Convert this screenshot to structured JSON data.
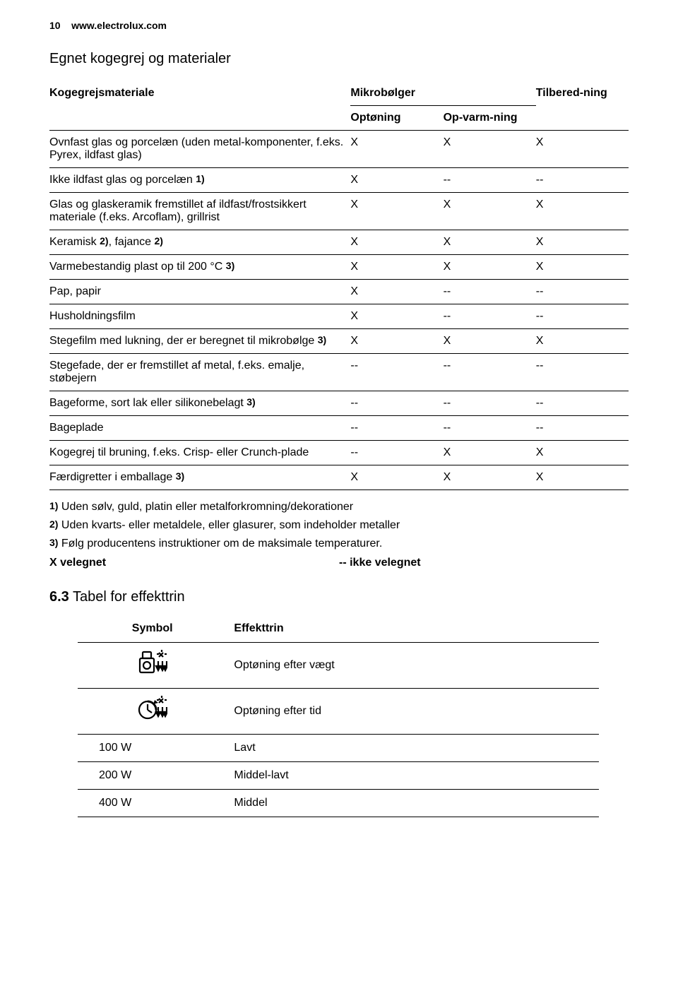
{
  "header": {
    "page_number": "10",
    "site": "www.electrolux.com"
  },
  "section_title": "Egnet kogegrej og materialer",
  "main_table": {
    "columns": {
      "c1": "Kogegrejsmateriale",
      "c2_top": "Mikrobølger",
      "c2a": "Optøning",
      "c2b": "Op-varm-ning",
      "c3": "Tilbered-ning"
    },
    "rows": [
      {
        "label": "Ovnfast glas og porcelæn (uden metal-komponenter, f.eks. Pyrex, ildfast glas)",
        "sup": "",
        "v": [
          "X",
          "X",
          "X"
        ]
      },
      {
        "label": "Ikke ildfast glas og porcelæn ",
        "sup": "1)",
        "v": [
          "X",
          "--",
          "--"
        ]
      },
      {
        "label": "Glas og glaskeramik fremstillet af ildfast/frostsikkert materiale (f.eks. Arcoflam), grillrist",
        "sup": "",
        "v": [
          "X",
          "X",
          "X"
        ]
      },
      {
        "label_pre": "Keramisk ",
        "sup_mid": "2)",
        "label_mid": ", fajance ",
        "sup": "2)",
        "v": [
          "X",
          "X",
          "X"
        ]
      },
      {
        "label": "Varmebestandig plast op til 200 °C ",
        "sup": "3)",
        "v": [
          "X",
          "X",
          "X"
        ]
      },
      {
        "label": "Pap, papir",
        "sup": "",
        "v": [
          "X",
          "--",
          "--"
        ]
      },
      {
        "label": "Husholdningsfilm",
        "sup": "",
        "v": [
          "X",
          "--",
          "--"
        ]
      },
      {
        "label": "Stegefilm med lukning, der er beregnet til mikrobølge ",
        "sup": "3)",
        "v": [
          "X",
          "X",
          "X"
        ]
      },
      {
        "label": "Stegefade, der er fremstillet af metal, f.eks. emalje, støbejern",
        "sup": "",
        "v": [
          "--",
          "--",
          "--"
        ]
      },
      {
        "label": "Bageforme, sort lak eller silikonebelagt ",
        "sup": "3)",
        "v": [
          "--",
          "--",
          "--"
        ]
      },
      {
        "label": "Bageplade",
        "sup": "",
        "v": [
          "--",
          "--",
          "--"
        ]
      },
      {
        "label": "Kogegrej til bruning, f.eks. Crisp- eller Crunch-plade",
        "sup": "",
        "v": [
          "--",
          "X",
          "X"
        ]
      },
      {
        "label": "Færdigretter i emballage ",
        "sup": "3)",
        "v": [
          "X",
          "X",
          "X"
        ]
      }
    ]
  },
  "footnotes": {
    "f1_sup": "1)",
    "f1": " Uden sølv, guld, platin eller metalforkromning/dekorationer",
    "f2_sup": "2)",
    "f2": " Uden kvarts- eller metaldele, eller glasurer, som indeholder metaller",
    "f3_sup": "3)",
    "f3": " Følg producentens instruktioner om de maksimale temperaturer."
  },
  "legend": {
    "left": "X velegnet",
    "right": "-- ikke velegnet"
  },
  "subsection": {
    "num": "6.3",
    "title": " Tabel for effekttrin"
  },
  "effekt_table": {
    "columns": {
      "c1": "Symbol",
      "c2": "Effekttrin"
    },
    "rows": [
      {
        "symbol": "icon-defrost-weight",
        "label": "Optøning efter vægt"
      },
      {
        "symbol": "icon-defrost-time",
        "label": "Optøning efter tid"
      },
      {
        "symbol_text": "100 W",
        "label": "Lavt"
      },
      {
        "symbol_text": "200 W",
        "label": "Middel-lavt"
      },
      {
        "symbol_text": "400 W",
        "label": "Middel"
      }
    ]
  }
}
